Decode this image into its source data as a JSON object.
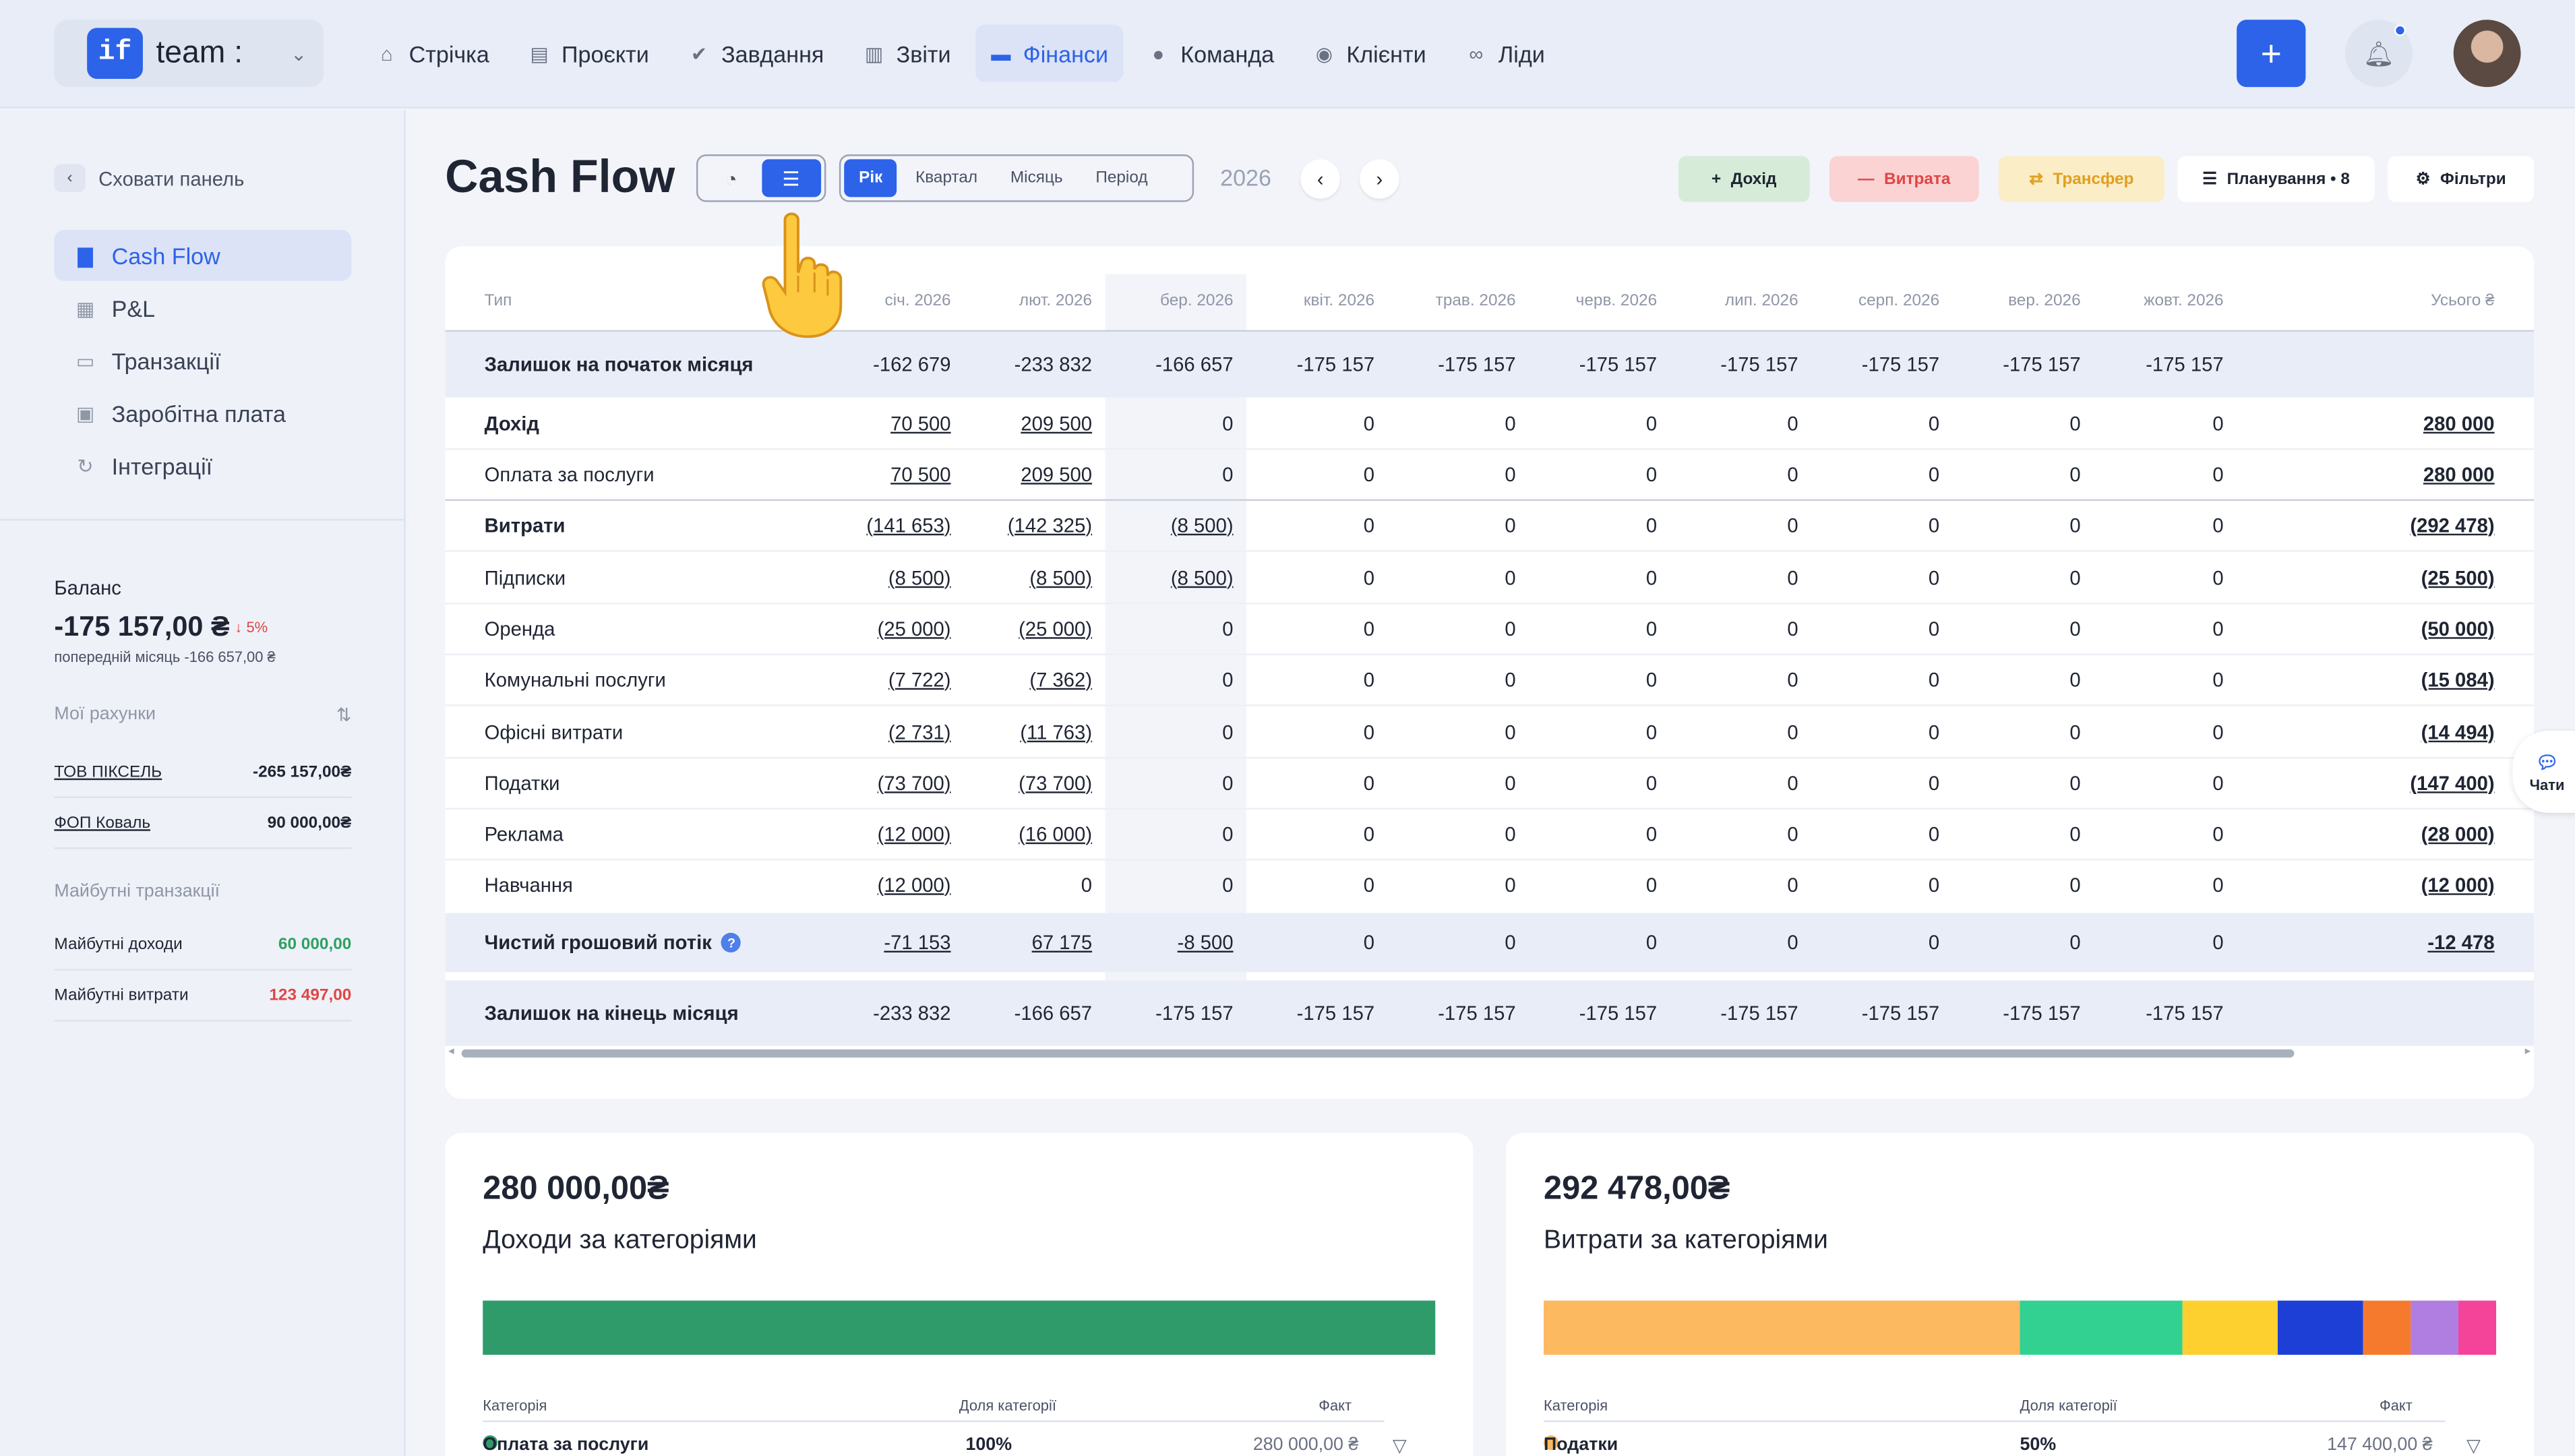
{
  "app": {
    "team_name": "team :",
    "logo_text": "if"
  },
  "nav": [
    {
      "label": "Стрічка",
      "icon": "home-icon"
    },
    {
      "label": "Проєкти",
      "icon": "document-icon"
    },
    {
      "label": "Завдання",
      "icon": "check-circle-icon"
    },
    {
      "label": "Звіти",
      "icon": "report-icon"
    },
    {
      "label": "Фінанси",
      "icon": "wallet-icon",
      "active": true
    },
    {
      "label": "Команда",
      "icon": "user-icon"
    },
    {
      "label": "Клієнти",
      "icon": "users-icon"
    },
    {
      "label": "Ліди",
      "icon": "link-icon"
    }
  ],
  "sidebar": {
    "hide_label": "Сховати панель",
    "items": [
      {
        "label": "Cash Flow",
        "icon": "chart-icon",
        "active": true
      },
      {
        "label": "P&L",
        "icon": "calendar-icon"
      },
      {
        "label": "Транзакції",
        "icon": "card-icon"
      },
      {
        "label": "Заробітна плата",
        "icon": "briefcase-icon"
      },
      {
        "label": "Інтеграції",
        "icon": "sync-icon"
      }
    ],
    "balance": {
      "label": "Баланс",
      "value": "-175 157,00 ₴",
      "change": "5%",
      "prev": "попередній місяць -166 657,00 ₴"
    },
    "accounts_title": "Мої рахунки",
    "accounts": [
      {
        "name": "ТОВ ПІКСЕЛЬ",
        "value": "-265 157,00₴"
      },
      {
        "name": "ФОП Коваль",
        "value": "90 000,00₴"
      }
    ],
    "future_title": "Майбутні транзакції",
    "future": [
      {
        "name": "Майбутні доходи",
        "value": "60 000,00",
        "color": "#2ea063"
      },
      {
        "name": "Майбутні витрати",
        "value": "123 497,00",
        "color": "#e04545"
      }
    ]
  },
  "header": {
    "title": "Cash Flow",
    "period_tabs": [
      "Рік",
      "Квартал",
      "Місяць",
      "Період"
    ],
    "year": "2026",
    "actions": {
      "income": "Дохід",
      "expense": "Витрата",
      "transfer": "Трансфер",
      "planning": "Планування • 8",
      "filters": "Фільтри"
    }
  },
  "table": {
    "type_header": "Тип",
    "months": [
      "січ. 2026",
      "лют. 2026",
      "бер. 2026",
      "квіт. 2026",
      "трав. 2026",
      "черв. 2026",
      "лип. 2026",
      "серп. 2026",
      "вер. 2026",
      "жовт. 2026"
    ],
    "total_header": "Усього ₴",
    "rows": [
      {
        "label": "Залишок на початок місяця",
        "values": [
          "-162 679",
          "-233 832",
          "-166 657",
          "-175 157",
          "-175 157",
          "-175 157",
          "-175 157",
          "-175 157",
          "-175 157",
          "-175 157"
        ],
        "total": ""
      },
      {
        "label": "Дохід",
        "values": [
          "70 500",
          "209 500",
          "0",
          "0",
          "0",
          "0",
          "0",
          "0",
          "0",
          "0"
        ],
        "total": "280 000"
      },
      {
        "label": "Оплата за послуги",
        "values": [
          "70 500",
          "209 500",
          "0",
          "0",
          "0",
          "0",
          "0",
          "0",
          "0",
          "0"
        ],
        "total": "280 000"
      },
      {
        "label": "Витрати",
        "values": [
          "(141 653)",
          "(142 325)",
          "(8 500)",
          "0",
          "0",
          "0",
          "0",
          "0",
          "0",
          "0"
        ],
        "total": "(292 478)"
      },
      {
        "label": "Підписки",
        "values": [
          "(8 500)",
          "(8 500)",
          "(8 500)",
          "0",
          "0",
          "0",
          "0",
          "0",
          "0",
          "0"
        ],
        "total": "(25 500)"
      },
      {
        "label": "Оренда",
        "values": [
          "(25 000)",
          "(25 000)",
          "0",
          "0",
          "0",
          "0",
          "0",
          "0",
          "0",
          "0"
        ],
        "total": "(50 000)"
      },
      {
        "label": "Комунальні послуги",
        "values": [
          "(7 722)",
          "(7 362)",
          "0",
          "0",
          "0",
          "0",
          "0",
          "0",
          "0",
          "0"
        ],
        "total": "(15 084)"
      },
      {
        "label": "Офісні витрати",
        "values": [
          "(2 731)",
          "(11 763)",
          "0",
          "0",
          "0",
          "0",
          "0",
          "0",
          "0",
          "0"
        ],
        "total": "(14 494)"
      },
      {
        "label": "Податки",
        "values": [
          "(73 700)",
          "(73 700)",
          "0",
          "0",
          "0",
          "0",
          "0",
          "0",
          "0",
          "0"
        ],
        "total": "(147 400)"
      },
      {
        "label": "Реклама",
        "values": [
          "(12 000)",
          "(16 000)",
          "0",
          "0",
          "0",
          "0",
          "0",
          "0",
          "0",
          "0"
        ],
        "total": "(28 000)"
      },
      {
        "label": "Навчання",
        "values": [
          "(12 000)",
          "0",
          "0",
          "0",
          "0",
          "0",
          "0",
          "0",
          "0",
          "0"
        ],
        "total": "(12 000)"
      },
      {
        "label": "Чистий грошовий потік",
        "values": [
          "-71 153",
          "67 175",
          "-8 500",
          "0",
          "0",
          "0",
          "0",
          "0",
          "0",
          "0"
        ],
        "total": "-12 478"
      },
      {
        "label": "Залишок на кінець місяця",
        "values": [
          "-233 832",
          "-166 657",
          "-175 157",
          "-175 157",
          "-175 157",
          "-175 157",
          "-175 157",
          "-175 157",
          "-175 157",
          "-175 157"
        ],
        "total": ""
      }
    ]
  },
  "chats_label": "Чати",
  "income_card": {
    "amount": "280 000,00₴",
    "title": "Доходи за категоріями",
    "segments": [
      {
        "share": 1.0,
        "color": "#2f9b6b"
      }
    ],
    "columns": [
      "Категорія",
      "Доля категорії",
      "Факт"
    ],
    "row": {
      "category": "Оплата за послуги",
      "share": "100%",
      "fact": "280 000,00 ₴",
      "color": "#2f9b6b"
    }
  },
  "expense_card": {
    "amount": "292 478,00₴",
    "title": "Витрати за категоріями",
    "segments": [
      {
        "share": 0.5,
        "color": "#fdb95f"
      },
      {
        "share": 0.17,
        "color": "#32d192"
      },
      {
        "share": 0.1,
        "color": "#fdd02f"
      },
      {
        "share": 0.09,
        "color": "#1d3fd6"
      },
      {
        "share": 0.05,
        "color": "#f57a2e"
      },
      {
        "share": 0.05,
        "color": "#b07de0"
      },
      {
        "share": 0.04,
        "color": "#f4449a"
      }
    ],
    "columns": [
      "Категорія",
      "Доля категорії",
      "Факт"
    ],
    "row": {
      "category": "Податки",
      "share": "50%",
      "fact": "147 400,00 ₴",
      "color": "#fdb95f"
    }
  }
}
